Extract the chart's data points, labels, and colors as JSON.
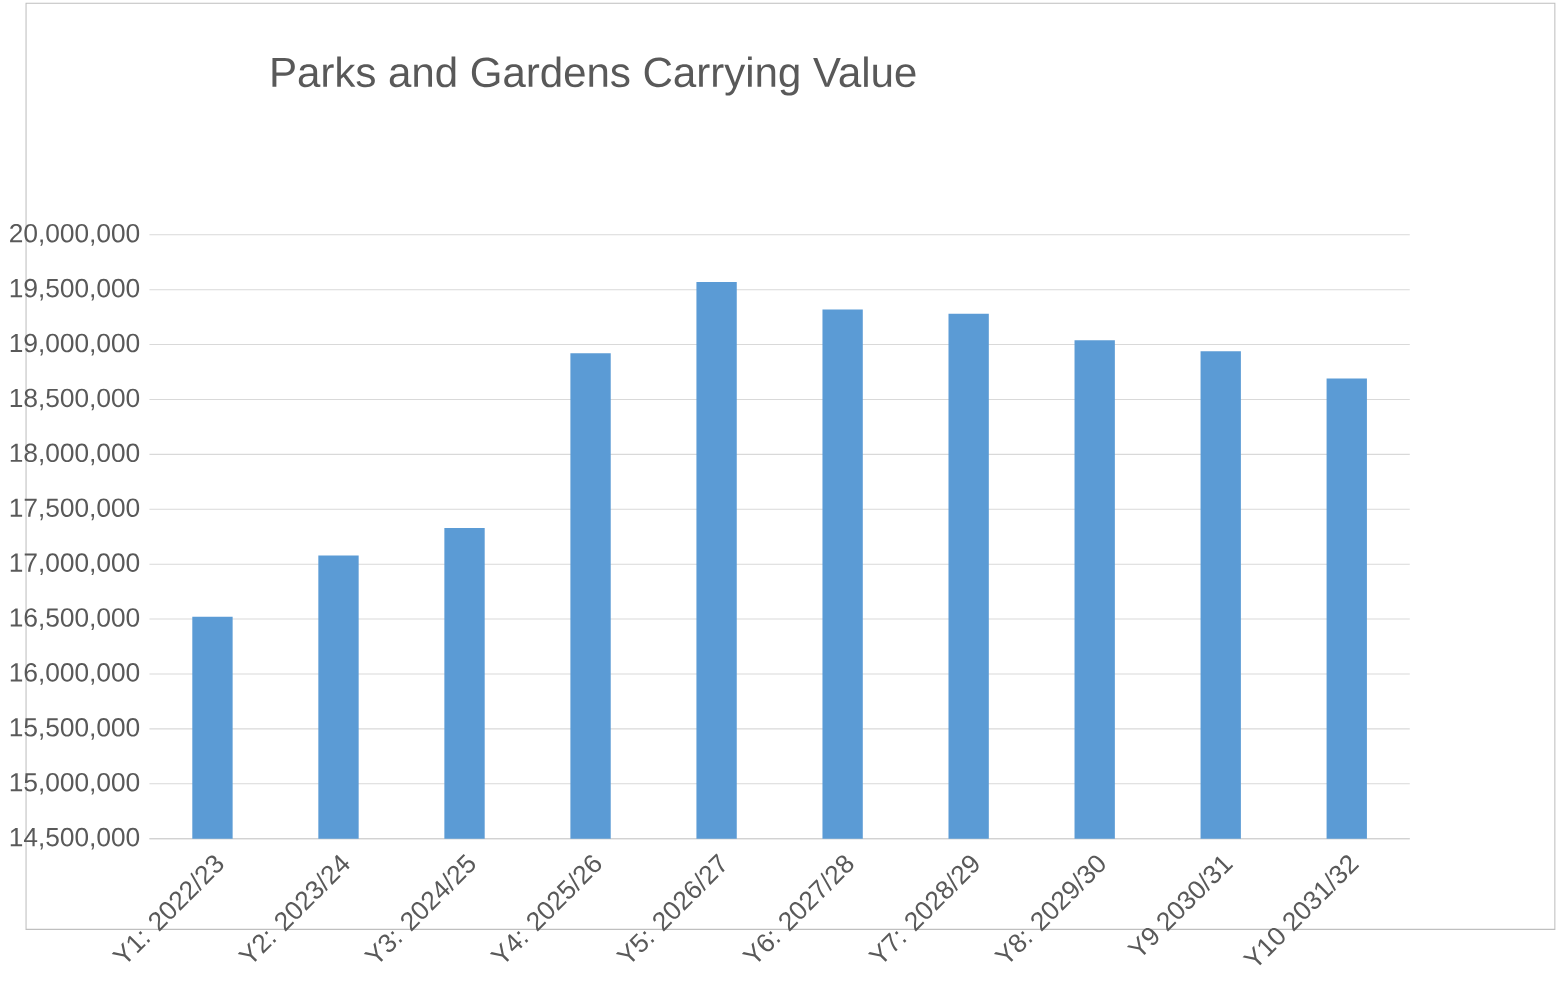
{
  "chart_data": {
    "type": "bar",
    "title": "Parks and Gardens Carrying Value",
    "categories": [
      "Y1: 2022/23",
      "Y2: 2023/24",
      "Y3: 2024/25",
      "Y4: 2025/26",
      "Y5: 2026/27",
      "Y6: 2027/28",
      "Y7: 2028/29",
      "Y8: 2029/30",
      "Y9 2030/31",
      "Y10 2031/32"
    ],
    "values": [
      16520000,
      17080000,
      17330000,
      18920000,
      19570000,
      19320000,
      19280000,
      19040000,
      18940000,
      18690000
    ],
    "color": "#5b9bd5",
    "ylim": [
      14500000,
      20000000
    ],
    "yticks": [
      {
        "value": 14500000,
        "label": "14,500,000"
      },
      {
        "value": 15000000,
        "label": "15,000,000"
      },
      {
        "value": 15500000,
        "label": "15,500,000"
      },
      {
        "value": 16000000,
        "label": "16,000,000"
      },
      {
        "value": 16500000,
        "label": "16,500,000"
      },
      {
        "value": 17000000,
        "label": "17,000,000"
      },
      {
        "value": 17500000,
        "label": "17,500,000"
      },
      {
        "value": 18000000,
        "label": "18,000,000"
      },
      {
        "value": 18500000,
        "label": "18,500,000"
      },
      {
        "value": 19000000,
        "label": "19,000,000"
      },
      {
        "value": 19500000,
        "label": "19,500,000"
      },
      {
        "value": 20000000,
        "label": "20,000,000"
      }
    ],
    "grid": "y"
  }
}
